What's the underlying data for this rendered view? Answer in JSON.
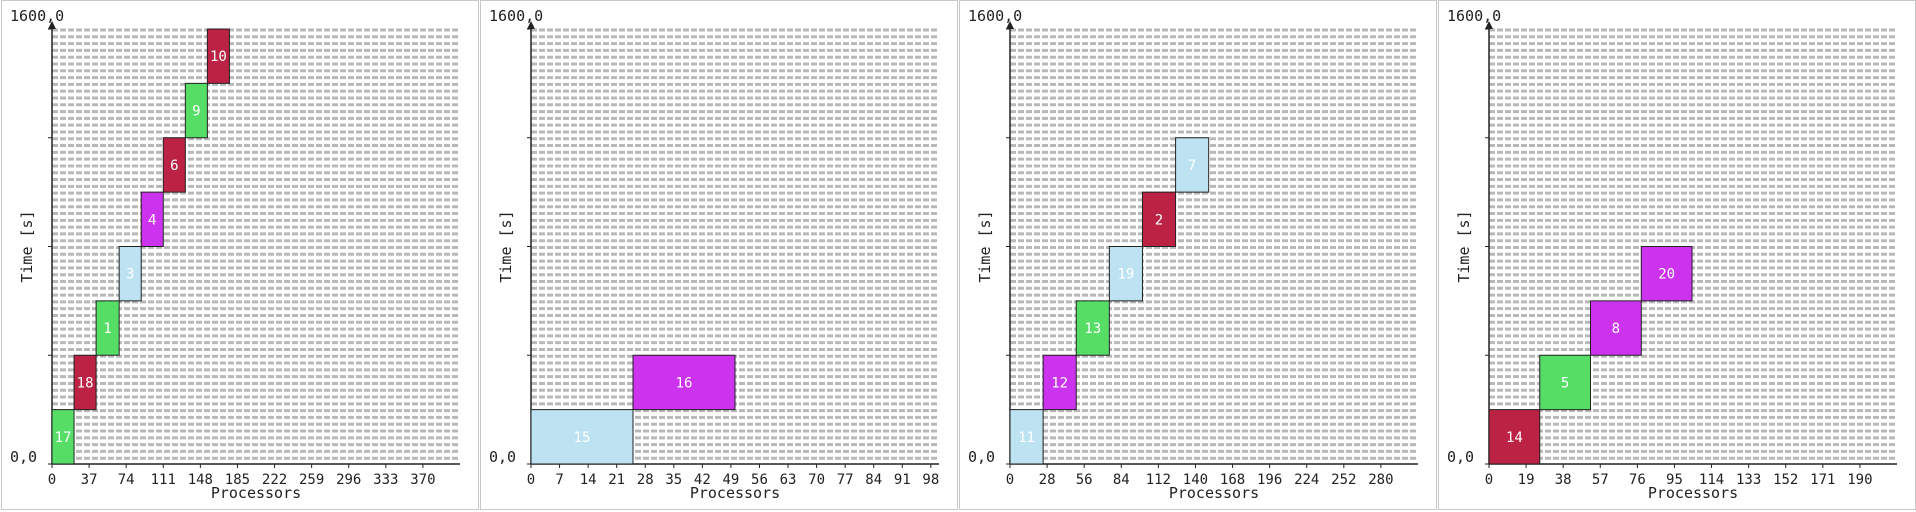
{
  "chart_data": [
    {
      "type": "gantt",
      "top_label": "1600,0",
      "origin_label": "0,0",
      "xlabel": "Processors",
      "ylabel": "Time [s]",
      "xlim": [
        0,
        407
      ],
      "ylim": [
        0,
        1600
      ],
      "x_ticks": [
        0,
        37,
        74,
        111,
        148,
        185,
        222,
        259,
        296,
        333,
        370
      ],
      "y_ticks": [
        0,
        400,
        800,
        1200,
        1600
      ],
      "grid": true,
      "jobs": [
        {
          "label": "17",
          "proc_start": 0,
          "proc_end": 22,
          "time_start": 0,
          "time_end": 200,
          "color": "#55dd66"
        },
        {
          "label": "18",
          "proc_start": 22,
          "proc_end": 44,
          "time_start": 200,
          "time_end": 400,
          "color": "#bb2244"
        },
        {
          "label": "1",
          "proc_start": 44,
          "proc_end": 67,
          "time_start": 400,
          "time_end": 600,
          "color": "#55dd66"
        },
        {
          "label": "3",
          "proc_start": 67,
          "proc_end": 89,
          "time_start": 600,
          "time_end": 800,
          "color": "#bde3f2"
        },
        {
          "label": "4",
          "proc_start": 89,
          "proc_end": 111,
          "time_start": 800,
          "time_end": 1000,
          "color": "#cc33ee"
        },
        {
          "label": "6",
          "proc_start": 111,
          "proc_end": 133,
          "time_start": 1000,
          "time_end": 1200,
          "color": "#bb2244"
        },
        {
          "label": "9",
          "proc_start": 133,
          "proc_end": 155,
          "time_start": 1200,
          "time_end": 1400,
          "color": "#55dd66"
        },
        {
          "label": "10",
          "proc_start": 155,
          "proc_end": 177,
          "time_start": 1400,
          "time_end": 1600,
          "color": "#bb2244"
        }
      ]
    },
    {
      "type": "gantt",
      "top_label": "1600,0",
      "origin_label": "0,0",
      "xlabel": "Processors",
      "ylabel": "Time [s]",
      "xlim": [
        0,
        100
      ],
      "ylim": [
        0,
        1600
      ],
      "x_ticks": [
        0,
        7,
        14,
        21,
        28,
        35,
        42,
        49,
        56,
        63,
        70,
        77,
        84,
        91,
        98
      ],
      "y_ticks": [
        0,
        400,
        800,
        1200,
        1600
      ],
      "grid": true,
      "jobs": [
        {
          "label": "15",
          "proc_start": 0,
          "proc_end": 25,
          "time_start": 0,
          "time_end": 200,
          "color": "#bde3f2"
        },
        {
          "label": "16",
          "proc_start": 25,
          "proc_end": 50,
          "time_start": 200,
          "time_end": 400,
          "color": "#cc33ee"
        }
      ]
    },
    {
      "type": "gantt",
      "top_label": "1600,0",
      "origin_label": "0,0",
      "xlabel": "Processors",
      "ylabel": "Time [s]",
      "xlim": [
        0,
        308
      ],
      "ylim": [
        0,
        1600
      ],
      "x_ticks": [
        0,
        28,
        56,
        84,
        112,
        140,
        168,
        196,
        224,
        252,
        280
      ],
      "y_ticks": [
        0,
        400,
        800,
        1200,
        1600
      ],
      "grid": true,
      "jobs": [
        {
          "label": "11",
          "proc_start": 0,
          "proc_end": 25,
          "time_start": 0,
          "time_end": 200,
          "color": "#bde3f2"
        },
        {
          "label": "12",
          "proc_start": 25,
          "proc_end": 50,
          "time_start": 200,
          "time_end": 400,
          "color": "#cc33ee"
        },
        {
          "label": "13",
          "proc_start": 50,
          "proc_end": 75,
          "time_start": 400,
          "time_end": 600,
          "color": "#55dd66"
        },
        {
          "label": "19",
          "proc_start": 75,
          "proc_end": 100,
          "time_start": 600,
          "time_end": 800,
          "color": "#bde3f2"
        },
        {
          "label": "2",
          "proc_start": 100,
          "proc_end": 125,
          "time_start": 800,
          "time_end": 1000,
          "color": "#bb2244"
        },
        {
          "label": "7",
          "proc_start": 125,
          "proc_end": 150,
          "time_start": 1000,
          "time_end": 1200,
          "color": "#bde3f2"
        }
      ]
    },
    {
      "type": "gantt",
      "top_label": "1600,0",
      "origin_label": "0,0",
      "xlabel": "Processors",
      "ylabel": "Time [s]",
      "xlim": [
        0,
        209
      ],
      "ylim": [
        0,
        1600
      ],
      "x_ticks": [
        0,
        19,
        38,
        57,
        76,
        95,
        114,
        133,
        152,
        171,
        190
      ],
      "y_ticks": [
        0,
        400,
        800,
        1200,
        1600
      ],
      "grid": true,
      "jobs": [
        {
          "label": "14",
          "proc_start": 0,
          "proc_end": 26,
          "time_start": 0,
          "time_end": 200,
          "color": "#bb2244"
        },
        {
          "label": "5",
          "proc_start": 26,
          "proc_end": 52,
          "time_start": 200,
          "time_end": 400,
          "color": "#55dd66"
        },
        {
          "label": "8",
          "proc_start": 52,
          "proc_end": 78,
          "time_start": 400,
          "time_end": 600,
          "color": "#cc33ee"
        },
        {
          "label": "20",
          "proc_start": 78,
          "proc_end": 104,
          "time_start": 600,
          "time_end": 800,
          "color": "#cc33ee"
        }
      ]
    }
  ]
}
